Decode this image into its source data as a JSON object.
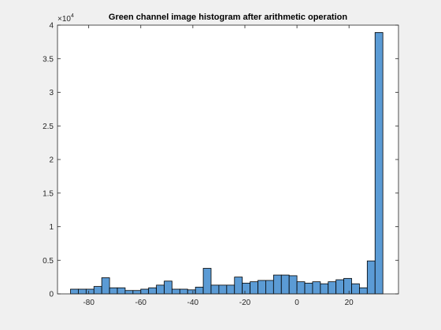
{
  "chart_data": {
    "type": "bar",
    "title": "Green channel image histogram after arithmetic operation",
    "xlabel": "",
    "ylabel": "",
    "y_exponent_label": {
      "base": "×10",
      "power": "4"
    },
    "xlim": [
      -92,
      39
    ],
    "ylim": [
      0,
      40000
    ],
    "x_ticks": [
      -80,
      -60,
      -40,
      -20,
      0,
      20
    ],
    "x_tick_labels": [
      "-80",
      "-60",
      "-40",
      "-20",
      "0",
      "20"
    ],
    "y_ticks": [
      0,
      5000,
      10000,
      15000,
      20000,
      25000,
      30000,
      35000,
      40000
    ],
    "y_tick_labels": [
      "0",
      "0.5",
      "1",
      "1.5",
      "2",
      "2.5",
      "3",
      "3.5",
      "4"
    ],
    "bin_edges": [
      -87,
      -84,
      -81,
      -78,
      -75,
      -72,
      -69,
      -66,
      -63,
      -60,
      -57,
      -54,
      -51,
      -48,
      -45,
      -42,
      -39,
      -36,
      -33,
      -30,
      -27,
      -24,
      -21,
      -18,
      -15,
      -12,
      -9,
      -6,
      -3,
      0,
      3,
      6,
      9,
      12,
      15,
      18,
      21,
      24,
      27,
      30,
      33
    ],
    "counts": [
      700,
      700,
      700,
      1100,
      2400,
      900,
      900,
      500,
      500,
      700,
      900,
      1300,
      1900,
      700,
      700,
      600,
      1000,
      3800,
      1300,
      1300,
      1300,
      2500,
      1600,
      1800,
      2000,
      2000,
      2800,
      2800,
      2700,
      1800,
      1600,
      1800,
      1500,
      1800,
      2100,
      2300,
      1500,
      900,
      4900,
      38900
    ],
    "grid": false,
    "legend": "none",
    "colors": {
      "bar_fill": "#5b9bd5",
      "bar_edge": "#000000",
      "axes_bg": "#ffffff",
      "figure_bg": "#f0f0f0"
    }
  }
}
